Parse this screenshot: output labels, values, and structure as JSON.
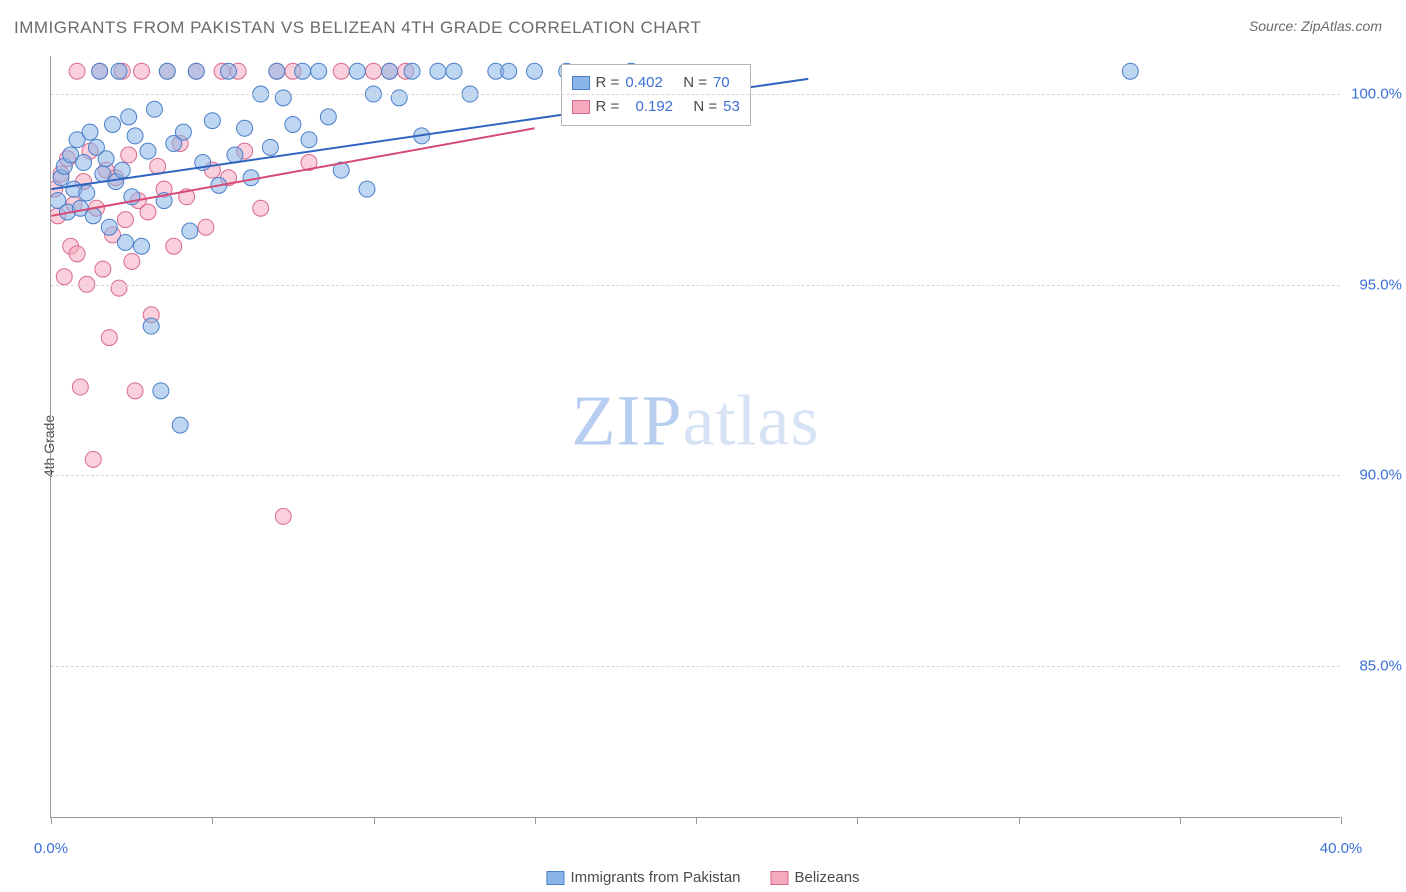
{
  "title": "IMMIGRANTS FROM PAKISTAN VS BELIZEAN 4TH GRADE CORRELATION CHART",
  "source_prefix": "Source: ",
  "source_name": "ZipAtlas.com",
  "watermark_a": "ZIP",
  "watermark_b": "atlas",
  "y_axis_label": "4th Grade",
  "chart": {
    "type": "scatter",
    "background_color": "#ffffff",
    "grid_color": "#d6d6d6",
    "axis_color": "#9a9a9a",
    "tick_label_color": "#3b6fd6",
    "xlim": [
      0,
      40
    ],
    "ylim": [
      81,
      101
    ],
    "xticks": [
      0,
      5,
      10,
      15,
      20,
      25,
      30,
      35,
      40
    ],
    "xtick_labels_visible": {
      "0": "0.0%",
      "40": "40.0%"
    },
    "yticks": [
      85,
      90,
      95,
      100
    ],
    "ytick_labels": {
      "85": "85.0%",
      "90": "90.0%",
      "95": "95.0%",
      "100": "100.0%"
    },
    "marker_radius": 8,
    "marker_opacity": 0.55,
    "series": [
      {
        "name": "Immigrants from Pakistan",
        "color_fill": "#8bb4e8",
        "color_stroke": "#4a7fc9",
        "r": 0.402,
        "n": 70,
        "trend": {
          "x1": 0,
          "y1": 97.5,
          "x2": 23.5,
          "y2": 100.4,
          "stroke": "#2f64c0",
          "width": 2
        },
        "points": [
          [
            0.2,
            97.2
          ],
          [
            0.3,
            97.8
          ],
          [
            0.4,
            98.1
          ],
          [
            0.5,
            96.9
          ],
          [
            0.6,
            98.4
          ],
          [
            0.7,
            97.5
          ],
          [
            0.8,
            98.8
          ],
          [
            0.9,
            97.0
          ],
          [
            1.0,
            98.2
          ],
          [
            1.1,
            97.4
          ],
          [
            1.2,
            99.0
          ],
          [
            1.3,
            96.8
          ],
          [
            1.4,
            98.6
          ],
          [
            1.5,
            100.6
          ],
          [
            1.6,
            97.9
          ],
          [
            1.7,
            98.3
          ],
          [
            1.8,
            96.5
          ],
          [
            1.9,
            99.2
          ],
          [
            2.0,
            97.7
          ],
          [
            2.1,
            100.6
          ],
          [
            2.2,
            98.0
          ],
          [
            2.3,
            96.1
          ],
          [
            2.4,
            99.4
          ],
          [
            2.5,
            97.3
          ],
          [
            2.6,
            98.9
          ],
          [
            2.8,
            96.0
          ],
          [
            3.0,
            98.5
          ],
          [
            3.1,
            93.9
          ],
          [
            3.2,
            99.6
          ],
          [
            3.4,
            92.2
          ],
          [
            3.5,
            97.2
          ],
          [
            3.6,
            100.6
          ],
          [
            3.8,
            98.7
          ],
          [
            4.0,
            91.3
          ],
          [
            4.1,
            99.0
          ],
          [
            4.3,
            96.4
          ],
          [
            4.5,
            100.6
          ],
          [
            4.7,
            98.2
          ],
          [
            5.0,
            99.3
          ],
          [
            5.2,
            97.6
          ],
          [
            5.5,
            100.6
          ],
          [
            5.7,
            98.4
          ],
          [
            6.0,
            99.1
          ],
          [
            6.2,
            97.8
          ],
          [
            6.5,
            100.0
          ],
          [
            6.8,
            98.6
          ],
          [
            7.0,
            100.6
          ],
          [
            7.2,
            99.9
          ],
          [
            7.5,
            99.2
          ],
          [
            7.8,
            100.6
          ],
          [
            8.0,
            98.8
          ],
          [
            8.3,
            100.6
          ],
          [
            8.6,
            99.4
          ],
          [
            9.0,
            98.0
          ],
          [
            9.5,
            100.6
          ],
          [
            9.8,
            97.5
          ],
          [
            10.0,
            100.0
          ],
          [
            10.5,
            100.6
          ],
          [
            10.8,
            99.9
          ],
          [
            11.2,
            100.6
          ],
          [
            11.5,
            98.9
          ],
          [
            12.0,
            100.6
          ],
          [
            12.5,
            100.6
          ],
          [
            13.0,
            100.0
          ],
          [
            13.8,
            100.6
          ],
          [
            14.2,
            100.6
          ],
          [
            15.0,
            100.6
          ],
          [
            16.0,
            100.6
          ],
          [
            18.0,
            100.6
          ],
          [
            33.5,
            100.6
          ]
        ]
      },
      {
        "name": "Belizeans",
        "color_fill": "#f4a9bd",
        "color_stroke": "#d96a8c",
        "r": 0.192,
        "n": 53,
        "trend": {
          "x1": 0,
          "y1": 96.8,
          "x2": 15.0,
          "y2": 99.1,
          "stroke": "#d64a74",
          "width": 2
        },
        "points": [
          [
            0.1,
            97.5
          ],
          [
            0.2,
            96.8
          ],
          [
            0.3,
            97.9
          ],
          [
            0.4,
            95.2
          ],
          [
            0.5,
            98.3
          ],
          [
            0.6,
            96.0
          ],
          [
            0.7,
            97.1
          ],
          [
            0.8,
            95.8
          ],
          [
            0.8,
            100.6
          ],
          [
            0.9,
            92.3
          ],
          [
            1.0,
            97.7
          ],
          [
            1.1,
            95.0
          ],
          [
            1.2,
            98.5
          ],
          [
            1.3,
            90.4
          ],
          [
            1.4,
            97.0
          ],
          [
            1.5,
            100.6
          ],
          [
            1.6,
            95.4
          ],
          [
            1.7,
            98.0
          ],
          [
            1.8,
            93.6
          ],
          [
            1.9,
            96.3
          ],
          [
            2.0,
            97.8
          ],
          [
            2.1,
            94.9
          ],
          [
            2.2,
            100.6
          ],
          [
            2.3,
            96.7
          ],
          [
            2.4,
            98.4
          ],
          [
            2.5,
            95.6
          ],
          [
            2.6,
            92.2
          ],
          [
            2.7,
            97.2
          ],
          [
            2.8,
            100.6
          ],
          [
            3.0,
            96.9
          ],
          [
            3.1,
            94.2
          ],
          [
            3.3,
            98.1
          ],
          [
            3.5,
            97.5
          ],
          [
            3.6,
            100.6
          ],
          [
            3.8,
            96.0
          ],
          [
            4.0,
            98.7
          ],
          [
            4.2,
            97.3
          ],
          [
            4.5,
            100.6
          ],
          [
            4.8,
            96.5
          ],
          [
            5.0,
            98.0
          ],
          [
            5.3,
            100.6
          ],
          [
            5.5,
            97.8
          ],
          [
            5.8,
            100.6
          ],
          [
            6.0,
            98.5
          ],
          [
            6.5,
            97.0
          ],
          [
            7.0,
            100.6
          ],
          [
            7.2,
            88.9
          ],
          [
            7.5,
            100.6
          ],
          [
            8.0,
            98.2
          ],
          [
            9.0,
            100.6
          ],
          [
            10.0,
            100.6
          ],
          [
            10.5,
            100.6
          ],
          [
            11.0,
            100.6
          ]
        ]
      }
    ]
  },
  "statbox": {
    "r_label": "R =",
    "n_label": "N ="
  },
  "legend_bottom": {
    "item1": "Immigrants from Pakistan",
    "item2": "Belizeans"
  }
}
